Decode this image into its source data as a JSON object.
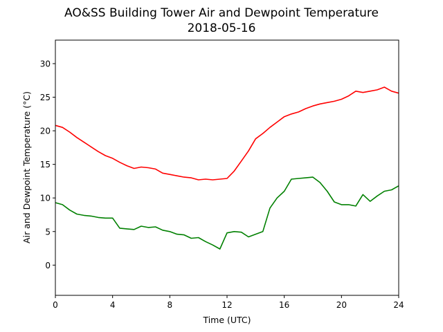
{
  "chart_data": {
    "type": "line",
    "title": "AO&SS Building Tower Air and Dewpoint Temperature",
    "subtitle": "2018-05-16",
    "xlabel": "Time (UTC)",
    "ylabel": "Air and Dewpoint Temperature (°C)",
    "xlim": [
      0,
      24
    ],
    "ylim": [
      -4.5,
      33.5
    ],
    "xticks": [
      0,
      4,
      8,
      12,
      16,
      20,
      24
    ],
    "yticks": [
      0,
      5,
      10,
      15,
      20,
      25,
      30
    ],
    "grid": false,
    "legend": "none",
    "series": [
      {
        "color": "#ff0000",
        "x": [
          0,
          0.5,
          1,
          1.5,
          2,
          2.5,
          3,
          3.5,
          4,
          4.5,
          5,
          5.5,
          6,
          6.5,
          7,
          7.5,
          8,
          8.5,
          9,
          9.5,
          10,
          10.5,
          11,
          11.5,
          12,
          12.5,
          13,
          13.5,
          14,
          14.5,
          15,
          15.5,
          16,
          16.5,
          17,
          17.5,
          18,
          18.5,
          19,
          19.5,
          20,
          20.5,
          21,
          21.5,
          22,
          22.5,
          23,
          23.5,
          24
        ],
        "values": [
          20.8,
          20.5,
          19.8,
          19.0,
          18.3,
          17.6,
          16.9,
          16.3,
          15.9,
          15.3,
          14.8,
          14.4,
          14.6,
          14.5,
          14.3,
          13.7,
          13.5,
          13.3,
          13.1,
          13.0,
          12.7,
          12.8,
          12.7,
          12.8,
          12.9,
          14.0,
          15.5,
          17.0,
          18.8,
          19.6,
          20.5,
          21.3,
          22.1,
          22.5,
          22.8,
          23.3,
          23.7,
          24.0,
          24.2,
          24.4,
          24.7,
          25.2,
          25.9,
          25.7,
          25.9,
          26.1,
          26.5,
          25.9,
          25.6
        ]
      },
      {
        "color": "#008000",
        "x": [
          0,
          0.5,
          1,
          1.5,
          2,
          2.5,
          3,
          3.5,
          4,
          4.5,
          5,
          5.5,
          6,
          6.5,
          7,
          7.5,
          8,
          8.5,
          9,
          9.5,
          10,
          10.5,
          11,
          11.5,
          12,
          12.5,
          13,
          13.5,
          14,
          14.5,
          15,
          15.5,
          16,
          16.5,
          17,
          17.5,
          18,
          18.5,
          19,
          19.5,
          20,
          20.5,
          21,
          21.5,
          22,
          22.5,
          23,
          23.5,
          24
        ],
        "values": [
          9.3,
          9.0,
          8.2,
          7.6,
          7.4,
          7.3,
          7.1,
          7.0,
          7.0,
          5.5,
          5.4,
          5.3,
          5.8,
          5.6,
          5.7,
          5.2,
          5.0,
          4.6,
          4.5,
          4.0,
          4.1,
          3.5,
          3.0,
          2.4,
          4.8,
          5.0,
          4.9,
          4.2,
          4.6,
          5.0,
          8.5,
          10.0,
          11.0,
          12.8,
          12.9,
          13.0,
          13.1,
          12.3,
          11.0,
          9.4,
          9.0,
          9.0,
          8.8,
          10.5,
          9.5,
          10.3,
          11.0,
          11.2,
          11.8
        ]
      }
    ]
  }
}
